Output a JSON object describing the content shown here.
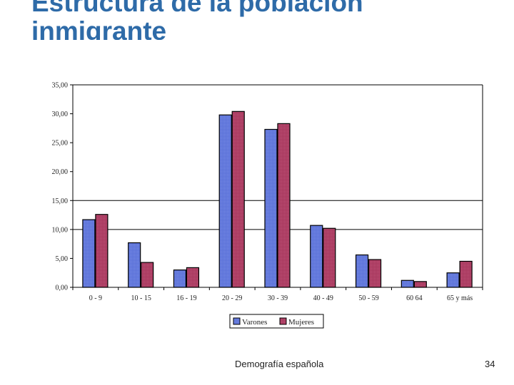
{
  "slide": {
    "title_line1": "Estructura de la población",
    "title_line2": "inmigrante",
    "footer": "Demografía española",
    "page_number": "34"
  },
  "chart_data": {
    "type": "bar",
    "categories": [
      "0 - 9",
      "10 - 15",
      "16 - 19",
      "20 - 29",
      "30 - 39",
      "40 - 49",
      "50 - 59",
      "60 64",
      "65 y más"
    ],
    "series": [
      {
        "name": "Varones",
        "color": "#5b72d9",
        "values": [
          11.7,
          7.7,
          3.0,
          29.8,
          27.3,
          10.7,
          5.6,
          1.2,
          2.5
        ]
      },
      {
        "name": "Mujeres",
        "color": "#a8385e",
        "values": [
          12.6,
          4.3,
          3.4,
          30.4,
          28.3,
          10.2,
          4.8,
          1.0,
          4.5
        ]
      }
    ],
    "y_ticks": [
      "0,00",
      "5,00",
      "10,00",
      "15,00",
      "20,00",
      "25,00",
      "30,00",
      "35,00"
    ],
    "ylim": [
      0,
      35
    ],
    "grid_lines_at": [
      10,
      15,
      35
    ],
    "legend": "bottom-center"
  }
}
